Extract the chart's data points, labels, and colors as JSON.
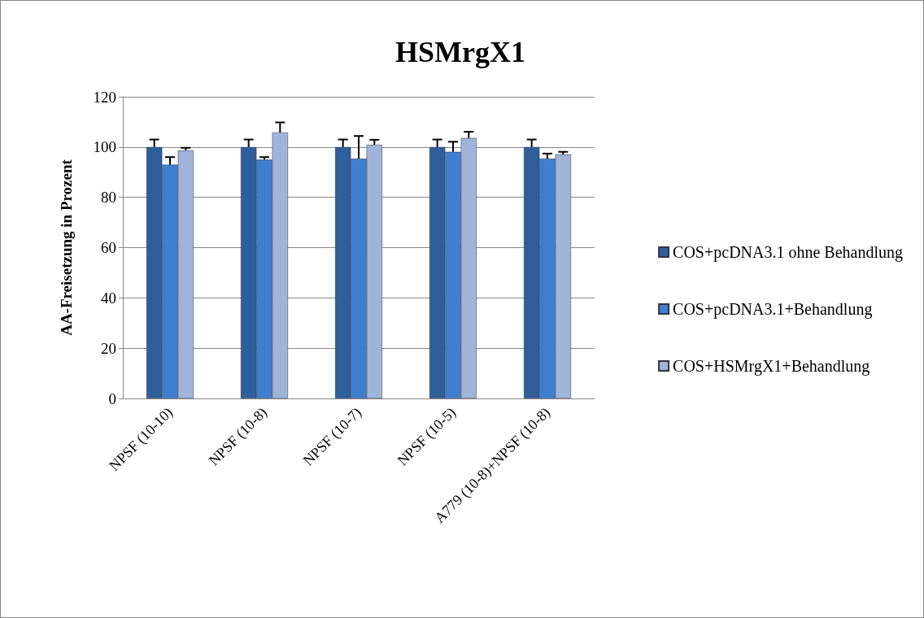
{
  "chart_data": {
    "type": "bar",
    "title": "HSMrgX1",
    "ylabel": "AA-Freisetzung in Prozent",
    "categories": [
      "NPSF (10-10)",
      "NPSF (10-8)",
      "NPSF (10-7)",
      "NPSF (10-5)",
      "A779 (10-8)+NPSF (10-8)"
    ],
    "series": [
      {
        "name": "COS+pcDNA3.1 ohne Behandlung",
        "color": "#2f5f9a",
        "values": [
          100,
          100,
          100,
          100,
          100
        ],
        "errors": [
          3,
          3,
          3,
          3,
          3
        ]
      },
      {
        "name": "COS+pcDNA3.1+Behandlung",
        "color": "#3f7fcf",
        "values": [
          93,
          95,
          95.4,
          98.1,
          95.4
        ],
        "errors": [
          3,
          1,
          9,
          4,
          2
        ]
      },
      {
        "name": "COS+HSMrgX1+Behandlung",
        "color": "#9fb4d8",
        "values": [
          98.7,
          105.8,
          100.9,
          103.6,
          97.1
        ],
        "errors": [
          1,
          4,
          2,
          2.5,
          1
        ]
      }
    ],
    "ylim": [
      0,
      120
    ],
    "yticks": [
      0,
      20,
      40,
      60,
      80,
      100,
      120
    ],
    "grid": "y",
    "legend": "right"
  }
}
